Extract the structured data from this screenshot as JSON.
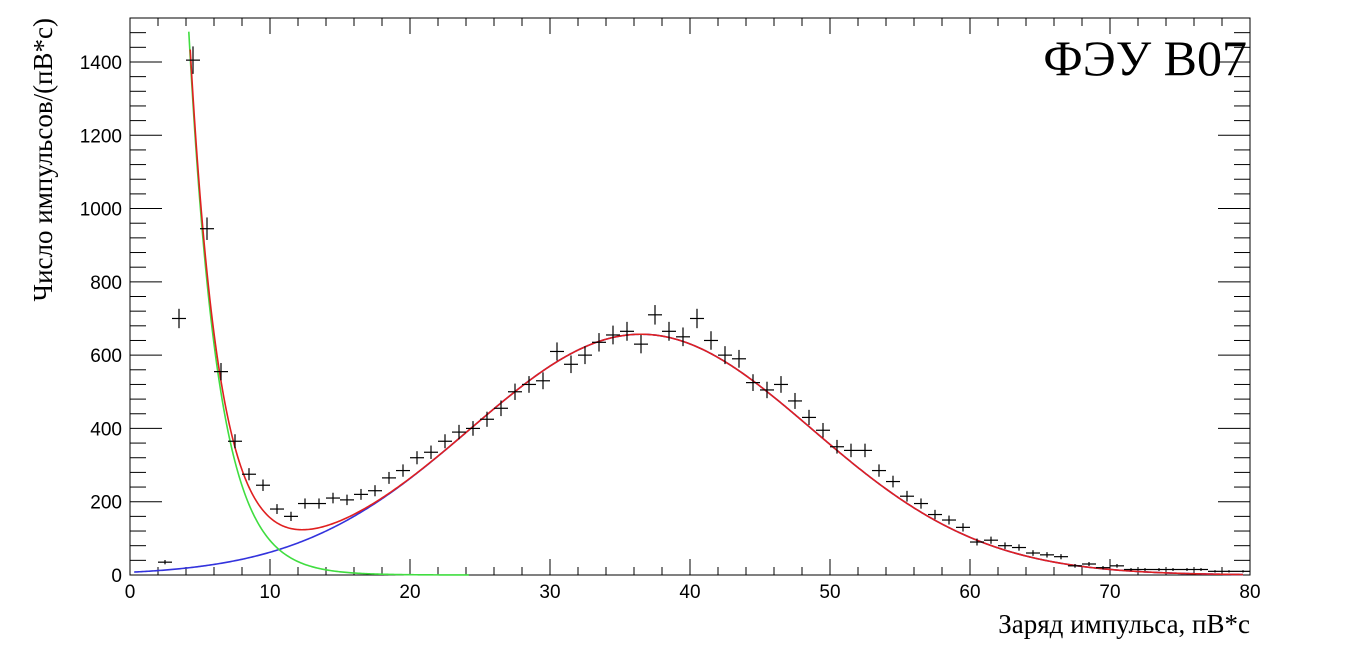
{
  "chart_data": {
    "type": "scatter",
    "title": "ФЭУ B07",
    "xlabel": "Заряд импульса, пВ*с",
    "ylabel": "Число импульсов/(пВ*с)",
    "xlim": [
      0,
      80
    ],
    "ylim": [
      0,
      1520
    ],
    "x_ticks": [
      0,
      10,
      20,
      30,
      40,
      50,
      60,
      70,
      80
    ],
    "y_ticks": [
      0,
      200,
      400,
      600,
      800,
      1000,
      1200,
      1400
    ],
    "grid": false,
    "legend": "none",
    "bin_width": 1,
    "series": [
      {
        "kind": "data-points-with-errors",
        "color": "#000000",
        "x": [
          2.5,
          3.5,
          4.5,
          5.5,
          6.5,
          7.5,
          8.5,
          9.5,
          10.5,
          11.5,
          12.5,
          13.5,
          14.5,
          15.5,
          16.5,
          17.5,
          18.5,
          19.5,
          20.5,
          21.5,
          22.5,
          23.5,
          24.5,
          25.5,
          26.5,
          27.5,
          28.5,
          29.5,
          30.5,
          31.5,
          32.5,
          33.5,
          34.5,
          35.5,
          36.5,
          37.5,
          38.5,
          39.5,
          40.5,
          41.5,
          42.5,
          43.5,
          44.5,
          45.5,
          46.5,
          47.5,
          48.5,
          49.5,
          50.5,
          51.5,
          52.5,
          53.5,
          54.5,
          55.5,
          56.5,
          57.5,
          58.5,
          59.5,
          60.5,
          61.5,
          62.5,
          63.5,
          64.5,
          65.5,
          66.5,
          67.5,
          68.5,
          69.5,
          70.5,
          71.5,
          72.5,
          73.5,
          74.5,
          75.5,
          76.5,
          77.5,
          78.5,
          79.5
        ],
        "y": [
          35,
          700,
          1405,
          945,
          555,
          365,
          275,
          245,
          180,
          160,
          195,
          195,
          210,
          205,
          220,
          230,
          265,
          285,
          320,
          335,
          365,
          390,
          400,
          425,
          455,
          500,
          520,
          530,
          610,
          575,
          600,
          635,
          655,
          665,
          630,
          710,
          665,
          650,
          700,
          640,
          600,
          590,
          525,
          505,
          520,
          475,
          430,
          395,
          350,
          340,
          340,
          285,
          255,
          215,
          195,
          165,
          150,
          130,
          90,
          95,
          80,
          75,
          60,
          55,
          50,
          25,
          30,
          20,
          25,
          15,
          15,
          15,
          15,
          15,
          15,
          10,
          10,
          10
        ]
      },
      {
        "name": "",
        "kind": "fit-curve",
        "color": "#e02020",
        "description_formula": "exp + gauss",
        "x_range": [
          4.3,
          79.5
        ]
      },
      {
        "name": "",
        "kind": "fit-curve",
        "color": "#40dd40",
        "description_formula": "exponential",
        "x_range": [
          4.2,
          24.2
        ]
      },
      {
        "name": "",
        "kind": "fit-curve",
        "color": "#3333dd",
        "description_formula": "gaussian",
        "x_range": [
          0.3,
          79.5
        ]
      }
    ],
    "fit_params": {
      "exp_amplitude": 10900,
      "exp_slope": -0.475,
      "gauss_amplitude": 657,
      "gauss_mean": 36.5,
      "gauss_sigma": 12.2
    }
  }
}
